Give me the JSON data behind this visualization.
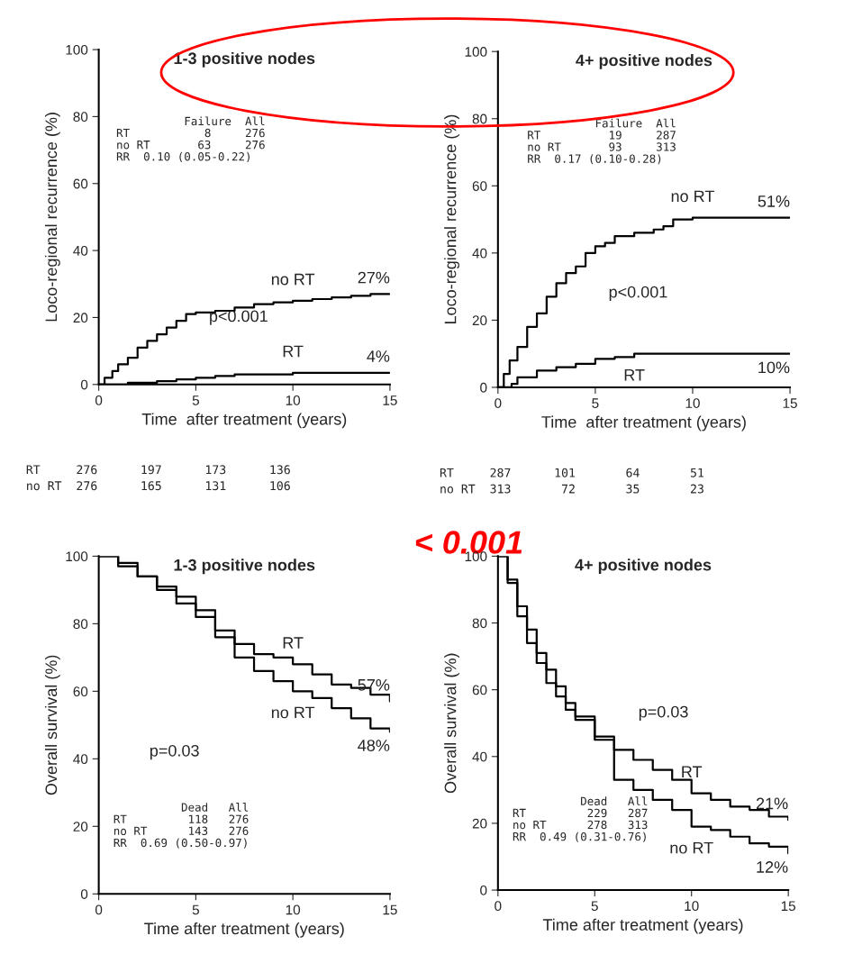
{
  "chart_data": [
    {
      "type": "step",
      "title": "1-3 positive nodes",
      "xlabel": "Time  after treatment (years)",
      "ylabel": "Loco-regional recurrence (%)",
      "xlim": [
        0,
        15
      ],
      "ylim": [
        0,
        100
      ],
      "xticks": [
        0,
        5,
        10,
        15
      ],
      "yticks": [
        0,
        20,
        40,
        60,
        80,
        100
      ],
      "series": [
        {
          "name": "no RT",
          "color": "#000000",
          "x": [
            0,
            0.3,
            0.7,
            1,
            1.5,
            2,
            2.5,
            3,
            3.5,
            4,
            4.5,
            5,
            6,
            7,
            8,
            9,
            10,
            11,
            12,
            13,
            14,
            15
          ],
          "values": [
            0,
            2,
            4,
            6,
            8,
            11,
            13,
            15,
            17,
            19,
            21,
            21.5,
            22,
            23,
            24,
            24.5,
            25,
            25.5,
            26,
            26.5,
            27,
            27
          ]
        },
        {
          "name": "RT",
          "color": "#000000",
          "x": [
            0,
            1.5,
            3,
            4,
            5,
            6,
            7,
            10,
            15
          ],
          "values": [
            0,
            0.5,
            1,
            1.5,
            2,
            2.5,
            3,
            3.5,
            3.5
          ]
        }
      ],
      "annotations": [
        "          Failure  All\nRT           8     276\nno RT       63     276\nRR  0.10 (0.05-0.22)",
        "p<0.001",
        "RT     276      197      173      136\nno RT  276      165      131      106",
        "27%",
        "4%"
      ]
    },
    {
      "type": "step",
      "title": "4+ positive nodes",
      "xlabel": "Time  after treatment (years)",
      "ylabel": "Loco-regional recurrence (%)",
      "xlim": [
        0,
        15
      ],
      "ylim": [
        0,
        100
      ],
      "xticks": [
        0,
        5,
        10,
        15
      ],
      "yticks": [
        0,
        20,
        40,
        60,
        80,
        100
      ],
      "series": [
        {
          "name": "no RT",
          "color": "#000000",
          "x": [
            0,
            0.3,
            0.6,
            1,
            1.5,
            2,
            2.5,
            3,
            3.5,
            4,
            4.5,
            5,
            5.5,
            6,
            7,
            8,
            8.5,
            9,
            10,
            15
          ],
          "values": [
            0,
            4,
            8,
            12,
            18,
            22,
            27,
            31,
            34,
            36,
            40,
            42,
            43,
            45,
            46,
            47,
            48,
            50,
            50.5,
            50.5
          ]
        },
        {
          "name": "RT",
          "color": "#000000",
          "x": [
            0,
            0.7,
            1,
            2,
            3,
            4,
            5,
            6,
            7,
            15
          ],
          "values": [
            0,
            1,
            3,
            5,
            6,
            7,
            8.5,
            9,
            10,
            10
          ]
        }
      ],
      "annotations": [
        "          Failure  All\nRT          19     287\nno RT       93     313\nRR  0.17 (0.10-0.28)",
        "p<0.001",
        "RT     287      101       64       51\nno RT  313       72       35       23",
        "< 0.001",
        "51%",
        "10%"
      ]
    },
    {
      "type": "step",
      "title": "1-3 positive nodes",
      "xlabel": "Time after treatment (years)",
      "ylabel": "Overall survival (%)",
      "xlim": [
        0,
        15
      ],
      "ylim": [
        0,
        100
      ],
      "xticks": [
        0,
        5,
        10,
        15
      ],
      "yticks": [
        0,
        20,
        40,
        60,
        80,
        100
      ],
      "series": [
        {
          "name": "RT",
          "color": "#000000",
          "x": [
            0,
            1,
            2,
            3,
            4,
            5,
            6,
            7,
            8,
            9,
            10,
            11,
            12,
            13,
            14,
            15
          ],
          "values": [
            100,
            98,
            94,
            90,
            86,
            82,
            78,
            74,
            71,
            70,
            68,
            65,
            62,
            61,
            59,
            57
          ]
        },
        {
          "name": "no RT",
          "color": "#000000",
          "x": [
            0,
            1,
            2,
            3,
            4,
            5,
            6,
            7,
            8,
            9,
            10,
            11,
            12,
            13,
            14,
            15
          ],
          "values": [
            100,
            97,
            94,
            91,
            88,
            84,
            76,
            70,
            66,
            63,
            60,
            58,
            55,
            52,
            49,
            48
          ]
        }
      ],
      "annotations": [
        "          Dead   All\nRT         118   276\nno RT      143   276\nRR  0.69 (0.50-0.97)",
        "p=0.03",
        "57%",
        "48%"
      ]
    },
    {
      "type": "step",
      "title": "4+ positive nodes",
      "xlabel": "Time after treatment (years)",
      "ylabel": "Overall survival (%)",
      "xlim": [
        0,
        15
      ],
      "ylim": [
        0,
        100
      ],
      "xticks": [
        0,
        5,
        10,
        15
      ],
      "yticks": [
        0,
        20,
        40,
        60,
        80,
        100
      ],
      "series": [
        {
          "name": "RT",
          "color": "#000000",
          "x": [
            0,
            0.5,
            1,
            1.5,
            2,
            2.5,
            3,
            3.5,
            4,
            5,
            6,
            7,
            8,
            9,
            10,
            11,
            12,
            13,
            14,
            15
          ],
          "values": [
            100,
            93,
            85,
            78,
            71,
            66,
            61,
            56,
            52,
            46,
            42,
            39,
            36,
            33,
            29,
            27,
            25,
            24,
            22,
            21
          ]
        },
        {
          "name": "no RT",
          "color": "#000000",
          "x": [
            0,
            0.5,
            1,
            1.5,
            2,
            2.5,
            3,
            3.5,
            4,
            5,
            6,
            7,
            8,
            9,
            10,
            11,
            12,
            13,
            14,
            15
          ],
          "values": [
            100,
            92,
            82,
            74,
            68,
            62,
            58,
            54,
            51,
            45,
            33,
            30,
            27,
            24,
            19,
            18,
            16,
            14,
            13,
            11
          ]
        }
      ],
      "annotations": [
        "          Dead   All\nRT         229   287\nno RT      278   313\nRR  0.49 (0.31-0.76)",
        "p=0.03",
        "21%",
        "12%"
      ]
    }
  ]
}
